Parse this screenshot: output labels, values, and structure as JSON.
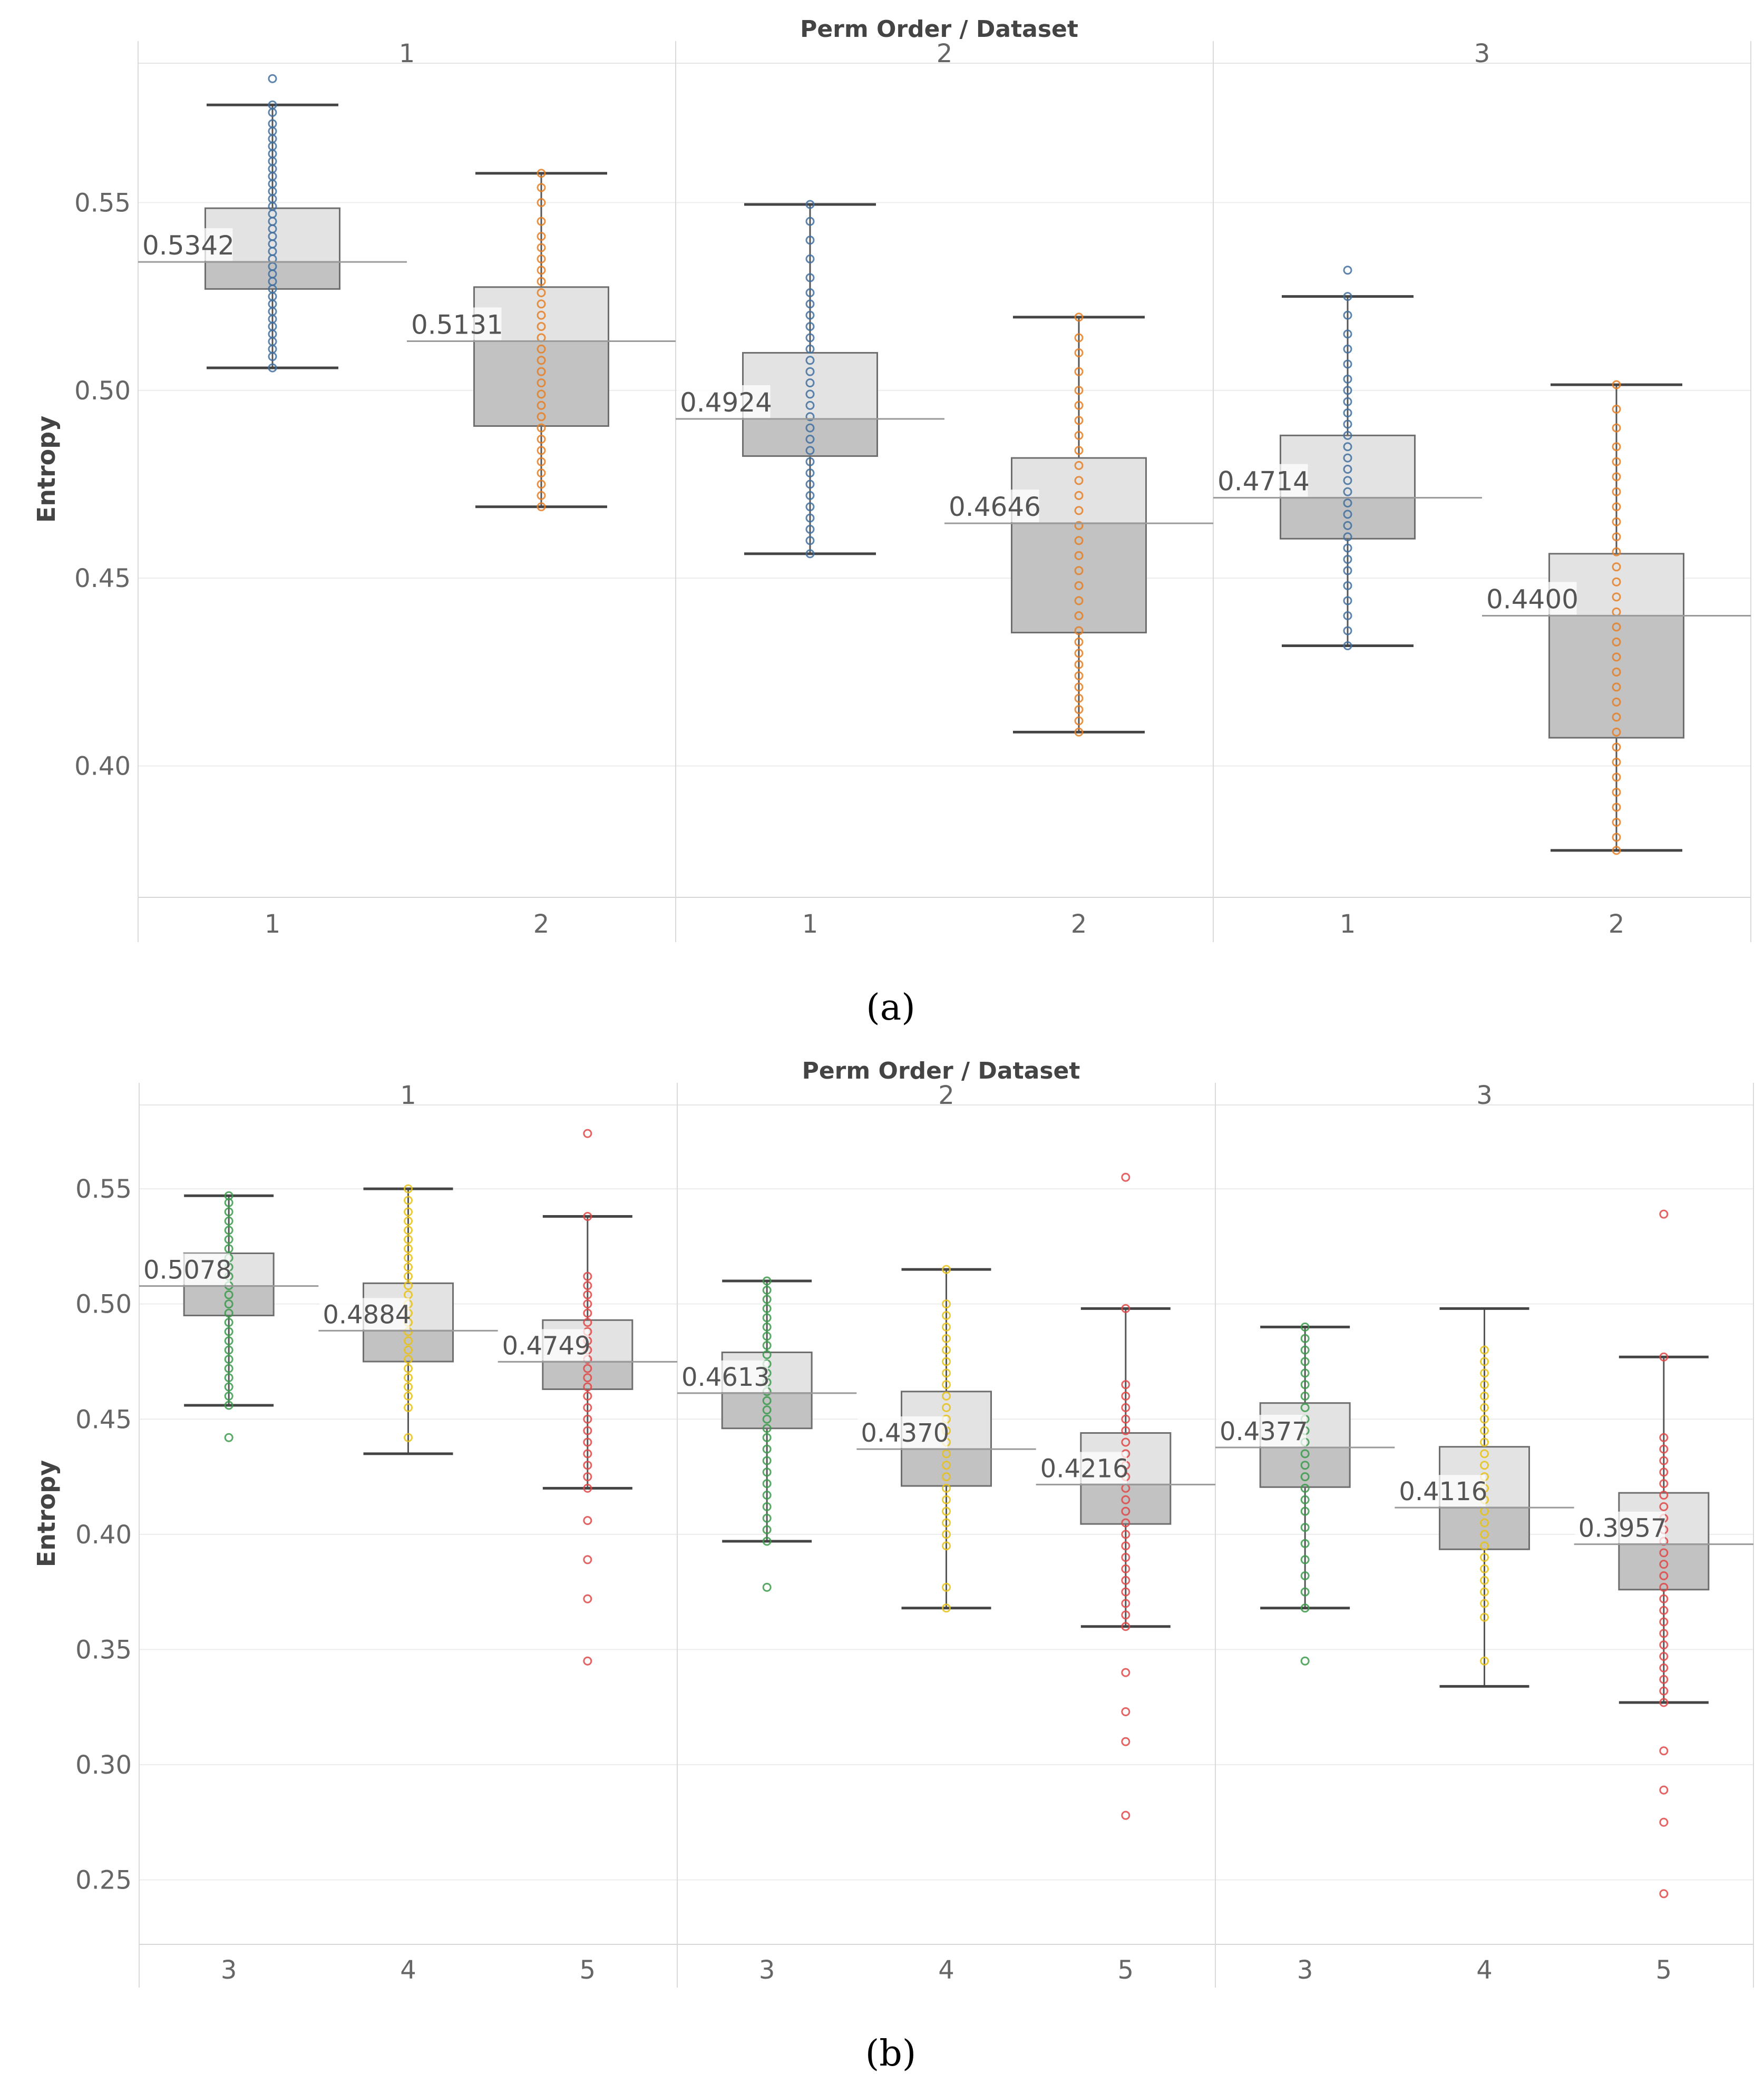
{
  "chart_data": [
    {
      "id": "a",
      "type": "boxplot",
      "caption": "(a)",
      "title": "Perm Order  /  Dataset",
      "ylabel": "Entropy",
      "ylim": [
        0.365,
        0.593
      ],
      "yticks": [
        "0.40",
        "0.45",
        "0.50",
        "0.55"
      ],
      "ytick_values": [
        0.4,
        0.45,
        0.5,
        0.55
      ],
      "groups": [
        "1",
        "2",
        "3"
      ],
      "categories": [
        "1",
        "2"
      ],
      "colors": {
        "1": "#3f6f9f",
        "2": "#e57f25"
      },
      "boxes": [
        {
          "group": "1",
          "dataset": "1",
          "median": 0.5342,
          "label": "0.5342",
          "q1": 0.527,
          "q3": 0.5485,
          "whisker_low": 0.506,
          "whisker_high": 0.576,
          "points": [
            0.506,
            0.509,
            0.511,
            0.513,
            0.515,
            0.517,
            0.519,
            0.521,
            0.523,
            0.525,
            0.527,
            0.529,
            0.531,
            0.533,
            0.535,
            0.537,
            0.539,
            0.541,
            0.543,
            0.545,
            0.547,
            0.549,
            0.551,
            0.553,
            0.555,
            0.557,
            0.559,
            0.561,
            0.563,
            0.565,
            0.567,
            0.569,
            0.571,
            0.574,
            0.576
          ],
          "outliers": [
            0.583
          ]
        },
        {
          "group": "1",
          "dataset": "2",
          "median": 0.5131,
          "label": "0.5131",
          "q1": 0.4905,
          "q3": 0.5275,
          "whisker_low": 0.469,
          "whisker_high": 0.5578,
          "points": [
            0.469,
            0.472,
            0.475,
            0.478,
            0.481,
            0.484,
            0.487,
            0.49,
            0.493,
            0.496,
            0.499,
            0.502,
            0.505,
            0.508,
            0.511,
            0.514,
            0.517,
            0.52,
            0.523,
            0.526,
            0.529,
            0.532,
            0.535,
            0.538,
            0.541,
            0.545,
            0.55,
            0.554,
            0.5578
          ],
          "outliers": []
        },
        {
          "group": "2",
          "dataset": "1",
          "median": 0.4924,
          "label": "0.4924",
          "q1": 0.4825,
          "q3": 0.51,
          "whisker_low": 0.4565,
          "whisker_high": 0.5495,
          "points": [
            0.4565,
            0.46,
            0.463,
            0.466,
            0.469,
            0.472,
            0.475,
            0.478,
            0.481,
            0.484,
            0.487,
            0.49,
            0.493,
            0.496,
            0.499,
            0.502,
            0.505,
            0.508,
            0.511,
            0.514,
            0.517,
            0.52,
            0.523,
            0.526,
            0.53,
            0.535,
            0.54,
            0.545,
            0.5495
          ],
          "outliers": []
        },
        {
          "group": "2",
          "dataset": "2",
          "median": 0.4646,
          "label": "0.4646",
          "q1": 0.4355,
          "q3": 0.482,
          "whisker_low": 0.409,
          "whisker_high": 0.5195,
          "points": [
            0.409,
            0.412,
            0.415,
            0.418,
            0.421,
            0.424,
            0.427,
            0.43,
            0.433,
            0.436,
            0.44,
            0.444,
            0.448,
            0.452,
            0.456,
            0.46,
            0.464,
            0.468,
            0.472,
            0.476,
            0.48,
            0.484,
            0.488,
            0.492,
            0.496,
            0.5,
            0.505,
            0.51,
            0.514,
            0.5195
          ],
          "outliers": []
        },
        {
          "group": "3",
          "dataset": "1",
          "median": 0.4714,
          "label": "0.4714",
          "q1": 0.4605,
          "q3": 0.488,
          "whisker_low": 0.432,
          "whisker_high": 0.525,
          "points": [
            0.432,
            0.436,
            0.44,
            0.444,
            0.448,
            0.452,
            0.455,
            0.458,
            0.461,
            0.464,
            0.467,
            0.47,
            0.473,
            0.476,
            0.479,
            0.482,
            0.485,
            0.488,
            0.491,
            0.494,
            0.497,
            0.5,
            0.503,
            0.507,
            0.511,
            0.515,
            0.52,
            0.525
          ],
          "outliers": [
            0.532
          ]
        },
        {
          "group": "3",
          "dataset": "2",
          "median": 0.44,
          "label": "0.4400",
          "q1": 0.4075,
          "q3": 0.4565,
          "whisker_low": 0.3775,
          "whisker_high": 0.5015,
          "points": [
            0.3775,
            0.381,
            0.385,
            0.389,
            0.393,
            0.397,
            0.401,
            0.405,
            0.409,
            0.413,
            0.417,
            0.421,
            0.425,
            0.429,
            0.433,
            0.437,
            0.441,
            0.445,
            0.449,
            0.453,
            0.457,
            0.461,
            0.465,
            0.469,
            0.473,
            0.477,
            0.481,
            0.485,
            0.49,
            0.495,
            0.5015
          ],
          "outliers": []
        }
      ]
    },
    {
      "id": "b",
      "type": "boxplot",
      "caption": "(b)",
      "title": "Perm Order  /  Dataset",
      "ylabel": "Entropy",
      "ylim": [
        0.222,
        0.596
      ],
      "yticks": [
        "0.25",
        "0.30",
        "0.35",
        "0.40",
        "0.45",
        "0.50",
        "0.55"
      ],
      "ytick_values": [
        0.25,
        0.3,
        0.35,
        0.4,
        0.45,
        0.5,
        0.55
      ],
      "groups": [
        "1",
        "2",
        "3"
      ],
      "categories": [
        "3",
        "4",
        "5"
      ],
      "colors": {
        "3": "#3a9a4a",
        "4": "#e8c21a",
        "5": "#e04646"
      },
      "boxes": [
        {
          "group": "1",
          "dataset": "3",
          "median": 0.5078,
          "label": "0.5078",
          "q1": 0.495,
          "q3": 0.522,
          "whisker_low": 0.456,
          "whisker_high": 0.547,
          "points": [
            0.456,
            0.46,
            0.464,
            0.468,
            0.472,
            0.476,
            0.48,
            0.484,
            0.488,
            0.492,
            0.496,
            0.5,
            0.504,
            0.508,
            0.512,
            0.516,
            0.52,
            0.524,
            0.528,
            0.532,
            0.536,
            0.54,
            0.544,
            0.547
          ],
          "outliers": [
            0.442
          ]
        },
        {
          "group": "1",
          "dataset": "4",
          "median": 0.4884,
          "label": "0.4884",
          "q1": 0.475,
          "q3": 0.509,
          "whisker_low": 0.435,
          "whisker_high": 0.55,
          "points": [
            0.442,
            0.455,
            0.46,
            0.464,
            0.468,
            0.472,
            0.476,
            0.48,
            0.484,
            0.488,
            0.492,
            0.496,
            0.5,
            0.504,
            0.508,
            0.512,
            0.516,
            0.52,
            0.524,
            0.528,
            0.532,
            0.536,
            0.54,
            0.545,
            0.55
          ],
          "outliers": []
        },
        {
          "group": "1",
          "dataset": "5",
          "median": 0.4749,
          "label": "0.4749",
          "q1": 0.463,
          "q3": 0.493,
          "whisker_low": 0.42,
          "whisker_high": 0.538,
          "points": [
            0.42,
            0.425,
            0.43,
            0.435,
            0.44,
            0.445,
            0.45,
            0.455,
            0.46,
            0.464,
            0.468,
            0.472,
            0.476,
            0.48,
            0.484,
            0.488,
            0.492,
            0.496,
            0.5,
            0.504,
            0.508,
            0.512,
            0.538
          ],
          "outliers": [
            0.574,
            0.406,
            0.389,
            0.372,
            0.345
          ]
        },
        {
          "group": "2",
          "dataset": "3",
          "median": 0.4613,
          "label": "0.4613",
          "q1": 0.446,
          "q3": 0.479,
          "whisker_low": 0.397,
          "whisker_high": 0.51,
          "points": [
            0.397,
            0.402,
            0.407,
            0.412,
            0.417,
            0.422,
            0.427,
            0.432,
            0.437,
            0.442,
            0.446,
            0.45,
            0.454,
            0.458,
            0.462,
            0.466,
            0.47,
            0.474,
            0.478,
            0.482,
            0.486,
            0.49,
            0.494,
            0.498,
            0.502,
            0.506,
            0.51
          ],
          "outliers": [
            0.377
          ]
        },
        {
          "group": "2",
          "dataset": "4",
          "median": 0.437,
          "label": "0.4370",
          "q1": 0.421,
          "q3": 0.462,
          "whisker_low": 0.368,
          "whisker_high": 0.515,
          "points": [
            0.368,
            0.377,
            0.395,
            0.4,
            0.405,
            0.41,
            0.415,
            0.42,
            0.425,
            0.43,
            0.435,
            0.44,
            0.445,
            0.45,
            0.455,
            0.46,
            0.465,
            0.47,
            0.475,
            0.48,
            0.485,
            0.49,
            0.495,
            0.5,
            0.515
          ],
          "outliers": []
        },
        {
          "group": "2",
          "dataset": "5",
          "median": 0.4216,
          "label": "0.4216",
          "q1": 0.4045,
          "q3": 0.444,
          "whisker_low": 0.36,
          "whisker_high": 0.498,
          "points": [
            0.36,
            0.365,
            0.37,
            0.375,
            0.38,
            0.385,
            0.39,
            0.395,
            0.4,
            0.405,
            0.41,
            0.415,
            0.42,
            0.425,
            0.43,
            0.435,
            0.44,
            0.445,
            0.45,
            0.455,
            0.46,
            0.465,
            0.498
          ],
          "outliers": [
            0.555,
            0.34,
            0.323,
            0.31,
            0.278
          ]
        },
        {
          "group": "3",
          "dataset": "3",
          "median": 0.4377,
          "label": "0.4377",
          "q1": 0.4205,
          "q3": 0.457,
          "whisker_low": 0.368,
          "whisker_high": 0.49,
          "points": [
            0.368,
            0.375,
            0.382,
            0.389,
            0.396,
            0.403,
            0.41,
            0.415,
            0.42,
            0.425,
            0.43,
            0.435,
            0.44,
            0.445,
            0.45,
            0.455,
            0.46,
            0.465,
            0.47,
            0.475,
            0.48,
            0.485,
            0.49
          ],
          "outliers": [
            0.345
          ]
        },
        {
          "group": "3",
          "dataset": "4",
          "median": 0.4116,
          "label": "0.4116",
          "q1": 0.3935,
          "q3": 0.438,
          "whisker_low": 0.334,
          "whisker_high": 0.498,
          "points": [
            0.345,
            0.364,
            0.37,
            0.375,
            0.38,
            0.385,
            0.39,
            0.395,
            0.4,
            0.405,
            0.41,
            0.415,
            0.42,
            0.425,
            0.43,
            0.435,
            0.44,
            0.445,
            0.45,
            0.455,
            0.46,
            0.465,
            0.47,
            0.475,
            0.48
          ],
          "outliers": []
        },
        {
          "group": "3",
          "dataset": "5",
          "median": 0.3957,
          "label": "0.3957",
          "q1": 0.376,
          "q3": 0.418,
          "whisker_low": 0.327,
          "whisker_high": 0.477,
          "points": [
            0.327,
            0.332,
            0.337,
            0.342,
            0.347,
            0.352,
            0.357,
            0.362,
            0.367,
            0.372,
            0.377,
            0.382,
            0.387,
            0.392,
            0.397,
            0.402,
            0.407,
            0.412,
            0.417,
            0.422,
            0.427,
            0.432,
            0.437,
            0.442,
            0.477
          ],
          "outliers": [
            0.539,
            0.306,
            0.289,
            0.275,
            0.244
          ]
        }
      ]
    }
  ]
}
